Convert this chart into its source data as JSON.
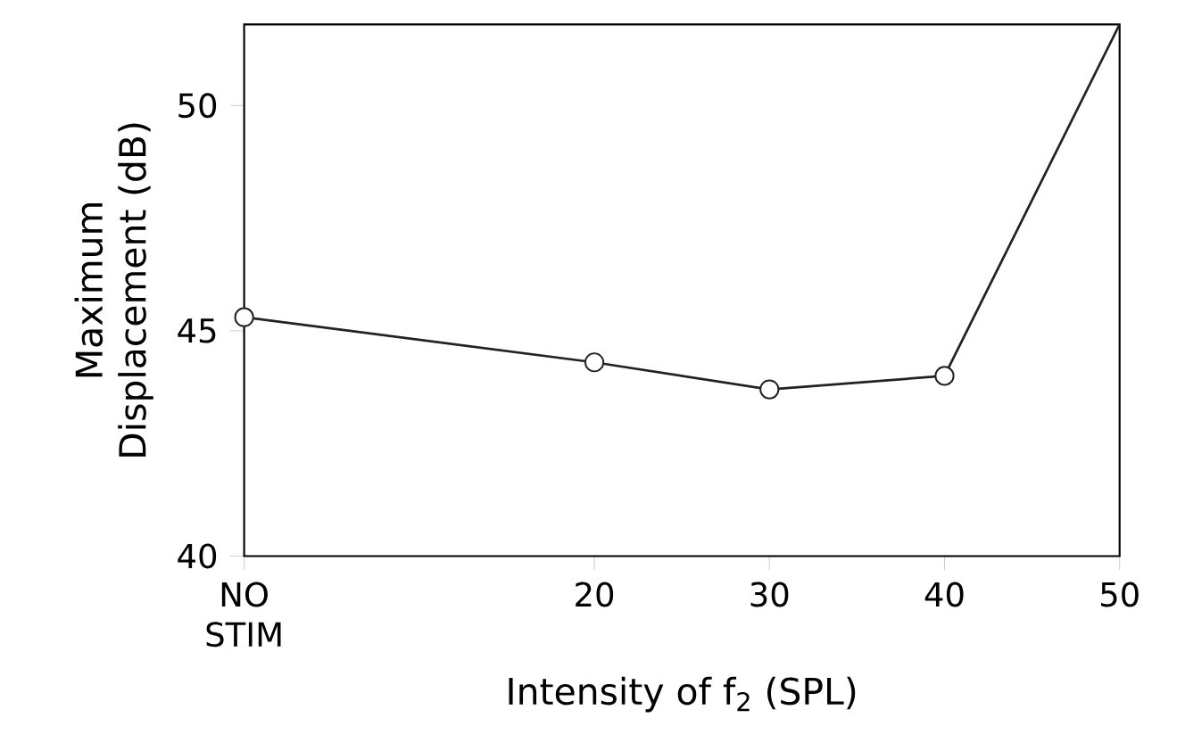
{
  "chart_data": {
    "type": "line",
    "xlabel": "Intensity of f$_{2}$ (SPL)",
    "ylabel": "Maximum Displacement (dB)",
    "x": [
      0,
      20,
      30,
      40,
      50
    ],
    "series": [
      {
        "color": "#222222",
        "values": [
          45.3,
          44.3,
          43.7,
          44.0,
          51.8
        ]
      }
    ],
    "xlim": [
      0,
      50
    ],
    "xticks": [
      {
        "value": 0,
        "label": "NO STIM"
      },
      20,
      30,
      40,
      50
    ],
    "ylim": [
      40,
      51.8
    ],
    "yticks": [
      40,
      45,
      50
    ],
    "marker": "circle",
    "line_style": "solid"
  }
}
